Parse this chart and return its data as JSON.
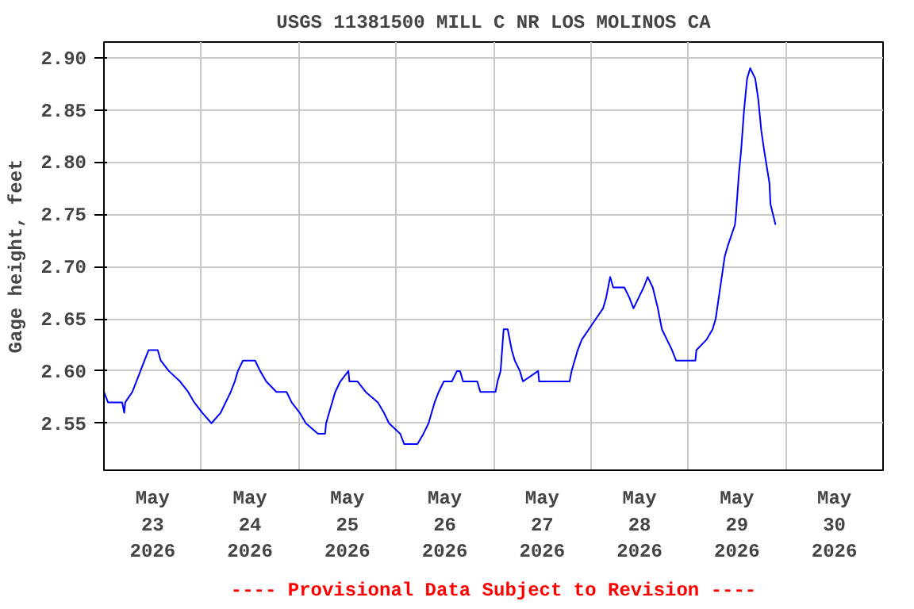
{
  "chart_data": {
    "type": "line",
    "title": "USGS 11381500 MILL C NR LOS MOLINOS CA",
    "ylabel": "Gage height, feet",
    "x": [
      "2026-05-23T00:00",
      "2026-05-23T01:00",
      "2026-05-23T04:30",
      "2026-05-23T05:00",
      "2026-05-23T05:15",
      "2026-05-23T07:00",
      "2026-05-23T08:00",
      "2026-05-23T09:00",
      "2026-05-23T10:00",
      "2026-05-23T11:00",
      "2026-05-23T13:15",
      "2026-05-23T14:00",
      "2026-05-23T16:00",
      "2026-05-23T18:45",
      "2026-05-23T20:45",
      "2026-05-23T22:15",
      "2026-05-24T00:15",
      "2026-05-24T02:30",
      "2026-05-24T04:45",
      "2026-05-24T06:00",
      "2026-05-24T07:15",
      "2026-05-24T08:15",
      "2026-05-24T09:00",
      "2026-05-24T10:15",
      "2026-05-24T13:15",
      "2026-05-24T14:30",
      "2026-05-24T16:00",
      "2026-05-24T18:30",
      "2026-05-24T21:00",
      "2026-05-24T22:15",
      "2026-05-25T00:15",
      "2026-05-25T01:45",
      "2026-05-25T04:45",
      "2026-05-25T06:30",
      "2026-05-25T06:45",
      "2026-05-25T07:30",
      "2026-05-25T08:15",
      "2026-05-25T09:00",
      "2026-05-25T10:15",
      "2026-05-25T12:15",
      "2026-05-25T12:30",
      "2026-05-25T14:30",
      "2026-05-25T16:30",
      "2026-05-25T19:30",
      "2026-05-25T21:00",
      "2026-05-25T22:15",
      "2026-05-26T01:00",
      "2026-05-26T02:00",
      "2026-05-26T05:15",
      "2026-05-26T06:45",
      "2026-05-26T08:00",
      "2026-05-26T08:45",
      "2026-05-26T09:30",
      "2026-05-26T10:30",
      "2026-05-26T11:45",
      "2026-05-26T13:45",
      "2026-05-26T15:00",
      "2026-05-26T15:45",
      "2026-05-26T16:30",
      "2026-05-26T20:00",
      "2026-05-26T20:45",
      "2026-05-27T00:30",
      "2026-05-27T01:00",
      "2026-05-27T01:45",
      "2026-05-27T02:30",
      "2026-05-27T03:30",
      "2026-05-27T04:30",
      "2026-05-27T05:15",
      "2026-05-27T06:30",
      "2026-05-27T07:15",
      "2026-05-27T11:00",
      "2026-05-27T11:15",
      "2026-05-27T18:45",
      "2026-05-27T19:15",
      "2026-05-27T20:45",
      "2026-05-27T21:45",
      "2026-05-27T23:30",
      "2026-05-28T01:15",
      "2026-05-28T03:00",
      "2026-05-28T03:45",
      "2026-05-28T04:45",
      "2026-05-28T05:30",
      "2026-05-28T08:15",
      "2026-05-28T09:30",
      "2026-05-28T10:30",
      "2026-05-28T11:45",
      "2026-05-28T13:00",
      "2026-05-28T14:00",
      "2026-05-28T15:15",
      "2026-05-28T16:30",
      "2026-05-28T17:30",
      "2026-05-28T18:45",
      "2026-05-28T20:00",
      "2026-05-28T21:00",
      "2026-05-29T01:45",
      "2026-05-29T02:00",
      "2026-05-29T04:30",
      "2026-05-29T06:00",
      "2026-05-29T06:45",
      "2026-05-29T07:30",
      "2026-05-29T08:15",
      "2026-05-29T09:00",
      "2026-05-29T09:45",
      "2026-05-29T11:30",
      "2026-05-29T11:45",
      "2026-05-29T12:30",
      "2026-05-29T13:00",
      "2026-05-29T13:45",
      "2026-05-29T14:30",
      "2026-05-29T15:15",
      "2026-05-29T16:30",
      "2026-05-29T17:15",
      "2026-05-29T18:00",
      "2026-05-29T18:45",
      "2026-05-29T20:00",
      "2026-05-29T20:15",
      "2026-05-29T21:30"
    ],
    "series": [
      {
        "color": "#0000ff",
        "values": [
          2.58,
          2.57,
          2.57,
          2.56,
          2.57,
          2.58,
          2.59,
          2.6,
          2.61,
          2.62,
          2.62,
          2.61,
          2.6,
          2.59,
          2.58,
          2.57,
          2.56,
          2.55,
          2.56,
          2.57,
          2.58,
          2.59,
          2.6,
          2.61,
          2.61,
          2.6,
          2.59,
          2.58,
          2.58,
          2.57,
          2.56,
          2.55,
          2.54,
          2.54,
          2.55,
          2.56,
          2.57,
          2.58,
          2.59,
          2.6,
          2.59,
          2.59,
          2.58,
          2.57,
          2.56,
          2.55,
          2.54,
          2.53,
          2.53,
          2.54,
          2.55,
          2.56,
          2.57,
          2.58,
          2.59,
          2.59,
          2.6,
          2.6,
          2.59,
          2.59,
          2.58,
          2.58,
          2.59,
          2.6,
          2.64,
          2.64,
          2.62,
          2.61,
          2.6,
          2.59,
          2.6,
          2.59,
          2.59,
          2.6,
          2.62,
          2.63,
          2.64,
          2.65,
          2.66,
          2.67,
          2.69,
          2.68,
          2.68,
          2.67,
          2.66,
          2.67,
          2.68,
          2.69,
          2.68,
          2.66,
          2.64,
          2.63,
          2.62,
          2.61,
          2.61,
          2.62,
          2.63,
          2.64,
          2.65,
          2.67,
          2.69,
          2.71,
          2.72,
          2.74,
          2.75,
          2.79,
          2.81,
          2.85,
          2.88,
          2.89,
          2.88,
          2.86,
          2.83,
          2.81,
          2.78,
          2.76,
          2.74
        ]
      }
    ],
    "xlim": [
      "2026-05-23T00:00",
      "2026-05-31T00:00"
    ],
    "xticks": [
      {
        "value": "2026-05-23T12:00",
        "label": "May\n23\n2026"
      },
      {
        "value": "2026-05-24T00:00",
        "label": null
      },
      {
        "value": "2026-05-24T12:00",
        "label": "May\n24\n2026"
      },
      {
        "value": "2026-05-25T00:00",
        "label": null
      },
      {
        "value": "2026-05-25T12:00",
        "label": "May\n25\n2026"
      },
      {
        "value": "2026-05-26T00:00",
        "label": null
      },
      {
        "value": "2026-05-26T12:00",
        "label": "May\n26\n2026"
      },
      {
        "value": "2026-05-27T00:00",
        "label": null
      },
      {
        "value": "2026-05-27T12:00",
        "label": "May\n27\n2026"
      },
      {
        "value": "2026-05-28T00:00",
        "label": null
      },
      {
        "value": "2026-05-28T12:00",
        "label": "May\n28\n2026"
      },
      {
        "value": "2026-05-29T00:00",
        "label": null
      },
      {
        "value": "2026-05-29T12:00",
        "label": "May\n29\n2026"
      },
      {
        "value": "2026-05-30T00:00",
        "label": null
      },
      {
        "value": "2026-05-30T12:00",
        "label": "May\n30\n2026"
      }
    ],
    "ylim": [
      2.505,
      2.915
    ],
    "yticks": [
      {
        "value": 2.55,
        "label": "2.55"
      },
      {
        "value": 2.6,
        "label": "2.60"
      },
      {
        "value": 2.65,
        "label": "2.65"
      },
      {
        "value": 2.7,
        "label": "2.70"
      },
      {
        "value": 2.75,
        "label": "2.75"
      },
      {
        "value": 2.8,
        "label": "2.80"
      },
      {
        "value": 2.85,
        "label": "2.85"
      },
      {
        "value": 2.9,
        "label": "2.90"
      }
    ],
    "grid": true,
    "annotations": [
      "---- Provisional Data Subject to Revision ----"
    ]
  }
}
